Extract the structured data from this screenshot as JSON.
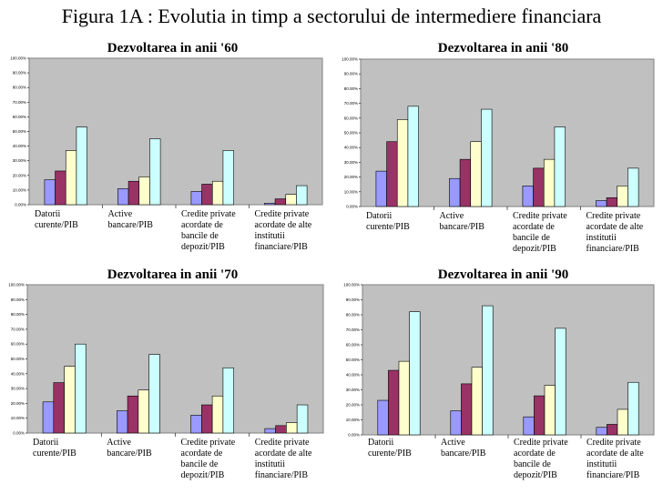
{
  "figure_title": "Figura 1A : Evolutia in timp a sectorului de intermediere financiara",
  "chart_data": [
    {
      "type": "bar",
      "title": "Dezvoltarea in anii '60",
      "ylim": [
        0,
        100
      ],
      "yticks": [
        "0.00%",
        "10.00%",
        "20.00%",
        "30.00%",
        "40.00%",
        "50.00%",
        "60.00%",
        "70.00%",
        "80.00%",
        "90.00%",
        "100.00%"
      ],
      "categories": [
        [
          "Datorii",
          "curente/PIB"
        ],
        [
          "Active",
          "bancare/PIB"
        ],
        [
          "Credite private",
          "acordate de",
          "bancile de",
          "depozit/PIB"
        ],
        [
          "Credite private",
          "acordate de alte",
          "institutii",
          "financiare/PIB"
        ]
      ],
      "series": [
        {
          "values": [
            17,
            11,
            9,
            1
          ]
        },
        {
          "values": [
            23,
            16,
            14,
            4
          ]
        },
        {
          "values": [
            37,
            19,
            16,
            7
          ]
        },
        {
          "values": [
            53,
            45,
            37,
            13
          ]
        }
      ],
      "grid": false
    },
    {
      "type": "bar",
      "title": "Dezvoltarea in anii '80",
      "ylim": [
        0,
        100
      ],
      "yticks": [
        "0.00%",
        "10.00%",
        "20.00%",
        "30.00%",
        "40.00%",
        "50.00%",
        "60.00%",
        "70.00%",
        "80.00%",
        "90.00%",
        "100.00%"
      ],
      "categories": [
        [
          "Datorii",
          "curente/PIB"
        ],
        [
          "Active",
          "bancare/PIB"
        ],
        [
          "Credite private",
          "acordate de",
          "bancile de",
          "depozit/PIB"
        ],
        [
          "Credite private",
          "acordate de alte",
          "institutii",
          "financiare/PIB"
        ]
      ],
      "series": [
        {
          "values": [
            24,
            19,
            14,
            4
          ]
        },
        {
          "values": [
            44,
            32,
            26,
            6
          ]
        },
        {
          "values": [
            59,
            44,
            32,
            14
          ]
        },
        {
          "values": [
            68,
            66,
            54,
            26
          ]
        }
      ],
      "grid": false
    },
    {
      "type": "bar",
      "title": "Dezvoltarea in anii '70",
      "ylim": [
        0,
        100
      ],
      "yticks": [
        "0.00%",
        "10.00%",
        "20.00%",
        "30.00%",
        "40.00%",
        "50.00%",
        "60.00%",
        "70.00%",
        "80.00%",
        "90.00%",
        "100.00%"
      ],
      "categories": [
        [
          "Datorii",
          "curente/PIB"
        ],
        [
          "Active",
          "bancare/PIB"
        ],
        [
          "Credite private",
          "acordate de",
          "bancile de",
          "depozit/PIB"
        ],
        [
          "Credite private",
          "acordate de alte",
          "institutii",
          "financiare/PIB"
        ]
      ],
      "series": [
        {
          "values": [
            21,
            15,
            12,
            3
          ]
        },
        {
          "values": [
            34,
            25,
            19,
            5
          ]
        },
        {
          "values": [
            45,
            29,
            25,
            7
          ]
        },
        {
          "values": [
            60,
            53,
            44,
            19
          ]
        }
      ],
      "grid": false
    },
    {
      "type": "bar",
      "title": "Dezvoltarea in anii '90",
      "ylim": [
        0,
        100
      ],
      "yticks": [
        "0.00%",
        "10.00%",
        "20.00%",
        "30.00%",
        "40.00%",
        "50.00%",
        "60.00%",
        "70.00%",
        "80.00%",
        "90.00%",
        "100.00%"
      ],
      "categories": [
        [
          "Datorii",
          "curente/PIB"
        ],
        [
          "Active",
          "bancare/PIB"
        ],
        [
          "Credite private",
          "acordate de",
          "bancile de",
          "depozit/PIB"
        ],
        [
          "Credite private",
          "acordate de alte",
          "institutii",
          "financiare/PIB"
        ]
      ],
      "series": [
        {
          "values": [
            23,
            16,
            12,
            5
          ]
        },
        {
          "values": [
            43,
            34,
            26,
            7
          ]
        },
        {
          "values": [
            49,
            45,
            33,
            17
          ]
        },
        {
          "values": [
            82,
            86,
            71,
            35
          ]
        }
      ],
      "grid": false
    }
  ],
  "colors": {
    "series": [
      "#9999ff",
      "#993366",
      "#ffffcc",
      "#ccffff"
    ],
    "plot_background": "#c0c0c0",
    "bar_outline": "#000000"
  }
}
